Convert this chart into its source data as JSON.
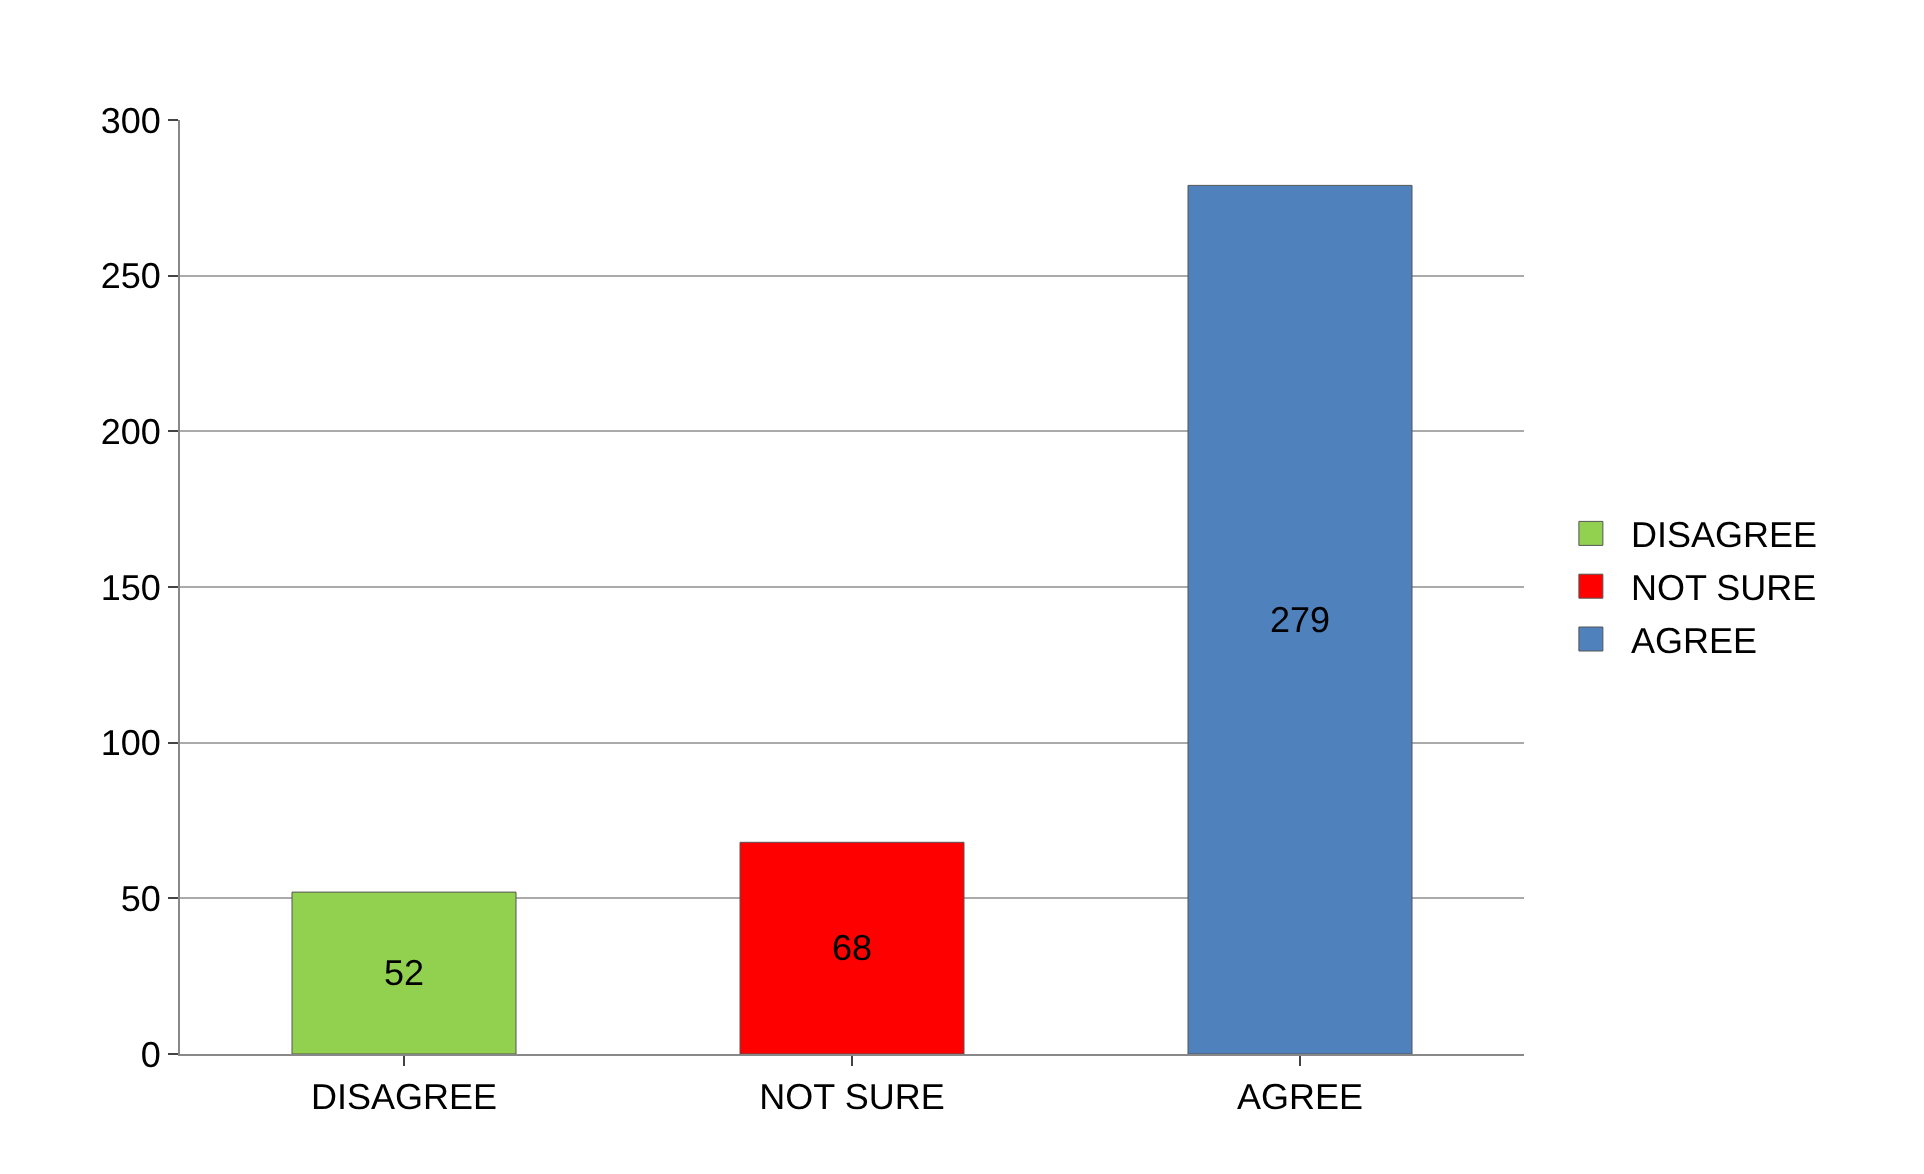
{
  "chart_data": {
    "type": "bar",
    "categories": [
      "DISAGREE",
      "NOT SURE",
      "AGREE"
    ],
    "series": [
      {
        "name": "DISAGREE",
        "color": "#92d050",
        "values": [
          52,
          null,
          null
        ]
      },
      {
        "name": "NOT SURE",
        "color": "#ff0000",
        "values": [
          null,
          68,
          null
        ]
      },
      {
        "name": "AGREE",
        "color": "#4f81bd",
        "values": [
          null,
          null,
          279
        ]
      }
    ],
    "stacked": true,
    "ylim": [
      0,
      300
    ],
    "yticks": [
      0,
      50,
      100,
      150,
      200,
      250,
      300
    ],
    "grid": "y",
    "legend": "right",
    "data_labels": true
  }
}
